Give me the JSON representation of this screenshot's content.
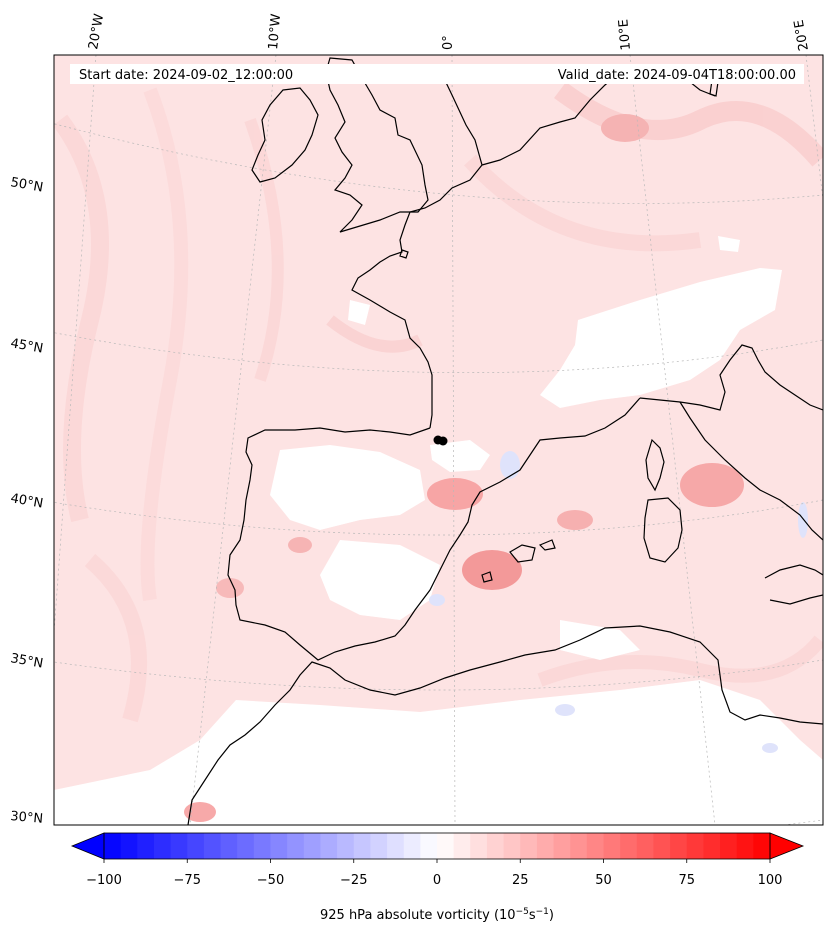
{
  "header": {
    "start_date": "Start date: 2024-09-02_12:00:00",
    "valid_date": "Valid_date: 2024-09-04T18:00:00.00"
  },
  "map": {
    "projection": "lambert-conformal",
    "lon_labels": [
      "20°W",
      "10°W",
      "0°",
      "10°E",
      "20°E"
    ],
    "lat_labels": [
      "50°N",
      "45°N",
      "40°N",
      "35°N",
      "30°N"
    ],
    "marker": {
      "lon": -0.4,
      "lat": 41.6,
      "color": "#000000"
    }
  },
  "colorbar": {
    "label_main": "925 hPa absolute vorticity (10",
    "label_exp1": "−5",
    "label_mid": "s",
    "label_exp2": "−1",
    "label_end": ")",
    "ticks": [
      "−100",
      "−75",
      "−50",
      "−25",
      "0",
      "25",
      "50",
      "75",
      "100"
    ],
    "min": -100,
    "max": 100,
    "levels": 40,
    "cmap": "bwr",
    "colors": {
      "negative_end": "#0000ff",
      "mid": "#ffffff",
      "positive_end": "#ff0000"
    }
  },
  "colors": {
    "land_outline": "#000000",
    "background_field": "#fde6e6",
    "grid_line": "#b0b0b0"
  }
}
